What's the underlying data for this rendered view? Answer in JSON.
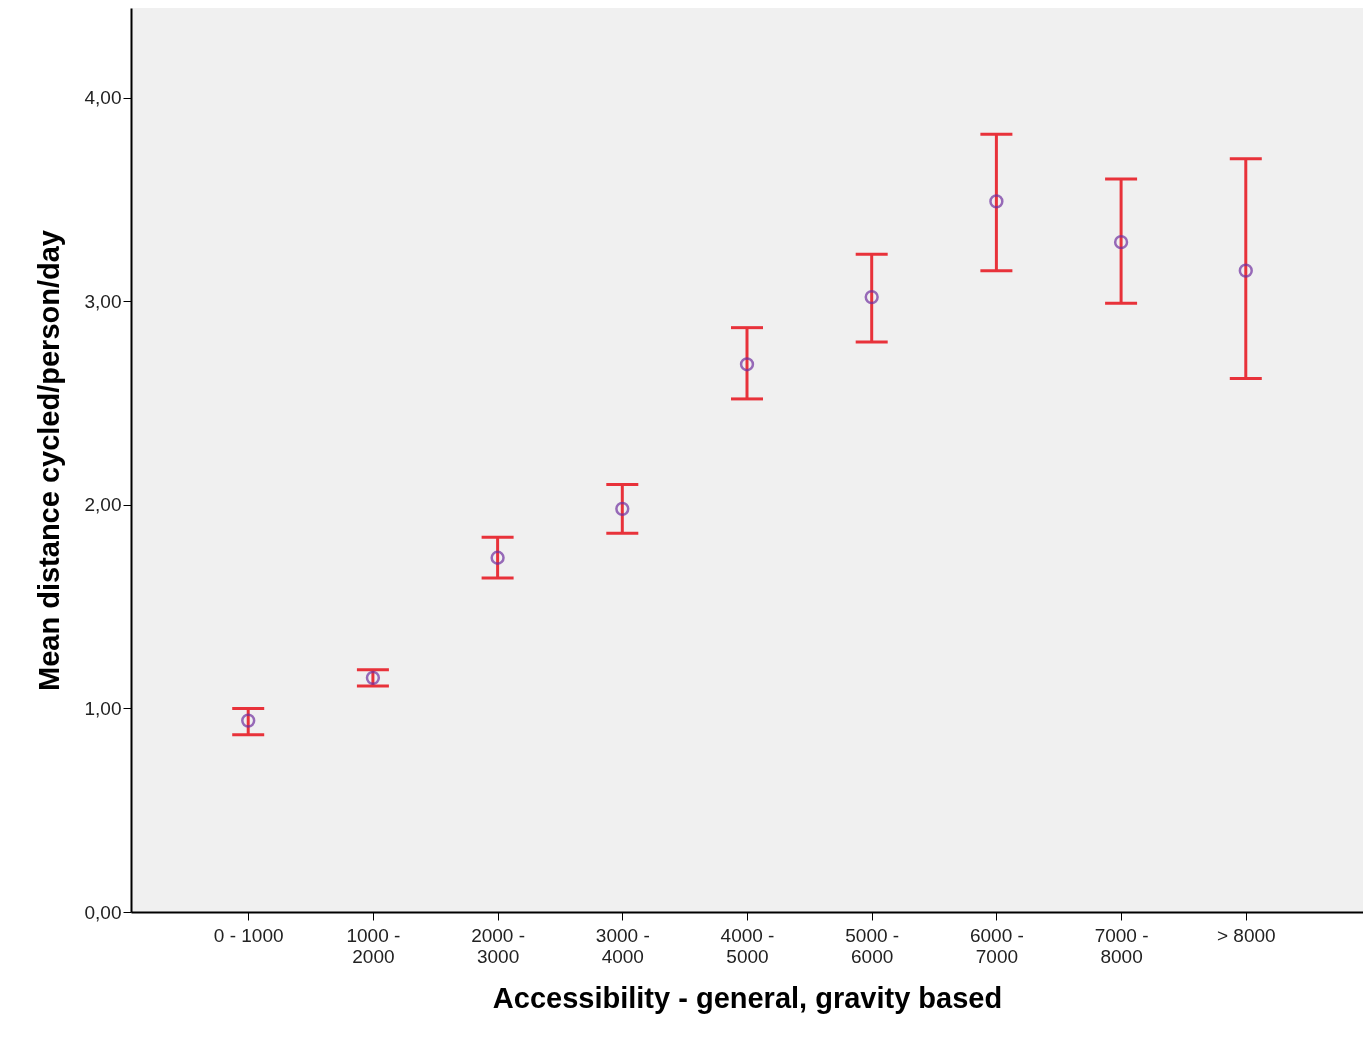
{
  "chart_data": {
    "type": "scatter",
    "xlabel": "Accessibility - general, gravity based",
    "ylabel": "Mean distance cycled/person/day",
    "categories": [
      "0 - 1000",
      "1000 - 2000",
      "2000 - 3000",
      "3000 - 4000",
      "4000 - 5000",
      "5000 - 6000",
      "6000 - 7000",
      "7000 - 8000",
      "> 8000"
    ],
    "series": [
      {
        "color": "#7030a0",
        "values": [
          0.94,
          1.15,
          1.74,
          1.98,
          2.69,
          3.02,
          3.49,
          3.29,
          3.15
        ],
        "errors": [
          [
            0.87,
            1.0
          ],
          [
            1.11,
            1.19
          ],
          [
            1.64,
            1.84
          ],
          [
            1.86,
            2.1
          ],
          [
            2.52,
            2.87
          ],
          [
            2.8,
            3.23
          ],
          [
            3.15,
            3.82
          ],
          [
            2.99,
            3.6
          ],
          [
            2.62,
            3.7
          ]
        ]
      }
    ],
    "ylim": [
      0,
      4.44
    ],
    "yticks": [
      {
        "value": 0,
        "label": "0,00"
      },
      {
        "value": 1,
        "label": "1,00"
      },
      {
        "value": 2,
        "label": "2,00"
      },
      {
        "value": 3,
        "label": "3,00"
      },
      {
        "value": 4,
        "label": "4,00"
      }
    ],
    "marker": "circle",
    "grid": false
  }
}
